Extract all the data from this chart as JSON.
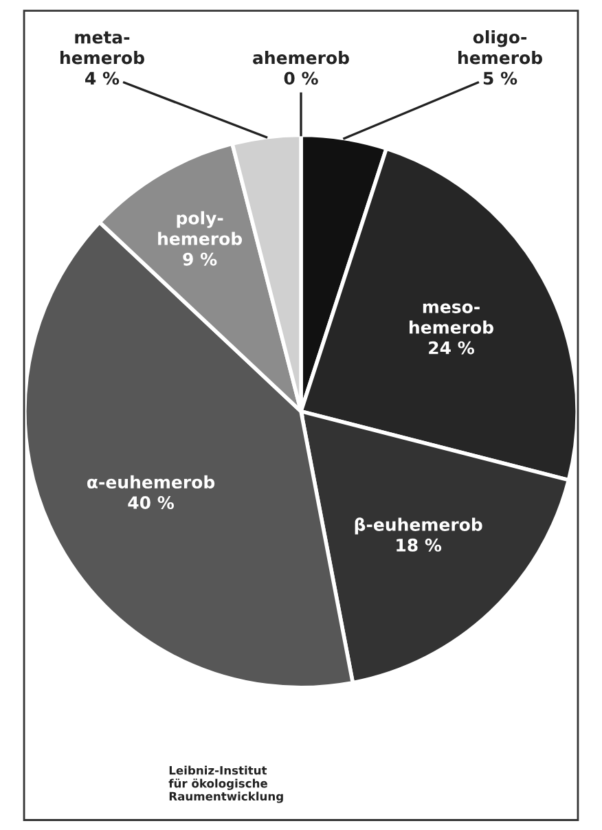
{
  "chart_data": {
    "type": "pie",
    "categories": [
      "ahemerob",
      "oligo-hemerob",
      "meso-hemerob",
      "β-euhemerob",
      "α-euhemerob",
      "poly-hemerob",
      "meta-hemerob"
    ],
    "values": [
      0,
      5,
      24,
      18,
      40,
      9,
      4
    ],
    "value_labels": [
      "0 %",
      "5 %",
      "24 %",
      "18 %",
      "40 %",
      "9 %",
      "4 %"
    ],
    "colors": [
      "#000000",
      "#111111",
      "#262626",
      "#333333",
      "#575757",
      "#8c8c8c",
      "#d0d0d0"
    ],
    "annotations": [
      "Leibniz-Institut\nfür ökologische\nRaumentwicklung"
    ]
  }
}
